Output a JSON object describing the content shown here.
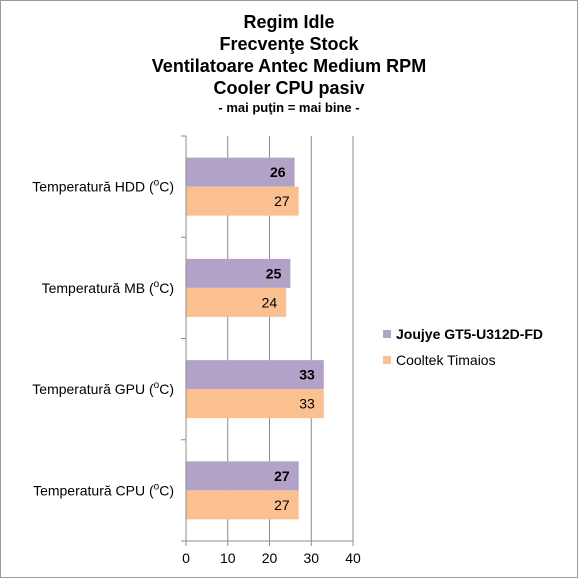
{
  "chart_data": {
    "type": "bar",
    "orientation": "horizontal",
    "title_lines": [
      "Regim Idle",
      "Frecvenţe Stock",
      "Ventilatoare Antec Medium RPM",
      "Cooler CPU pasiv"
    ],
    "subtitle": "- mai puţin = mai bine -",
    "categories": [
      {
        "base": "Temperatură  HDD (",
        "sup": "o",
        "tail": "C)"
      },
      {
        "base": "Temperatură  MB (",
        "sup": "o",
        "tail": "C)"
      },
      {
        "base": "Temperatură  GPU (",
        "sup": "o",
        "tail": "C)"
      },
      {
        "base": "Temperatură  CPU (",
        "sup": "o",
        "tail": "C)"
      }
    ],
    "series": [
      {
        "name": "Joujye GT5-U312D-FD",
        "values": [
          26,
          25,
          33,
          27
        ],
        "color": "#b3a2c7",
        "bold": true
      },
      {
        "name": "Cooltek Timaios",
        "values": [
          27,
          24,
          33,
          27
        ],
        "color": "#fac090",
        "bold": false
      }
    ],
    "xlim": [
      0,
      40
    ],
    "x_ticks": [
      0,
      10,
      20,
      30,
      40
    ],
    "grid": true,
    "legend_position": "right"
  }
}
